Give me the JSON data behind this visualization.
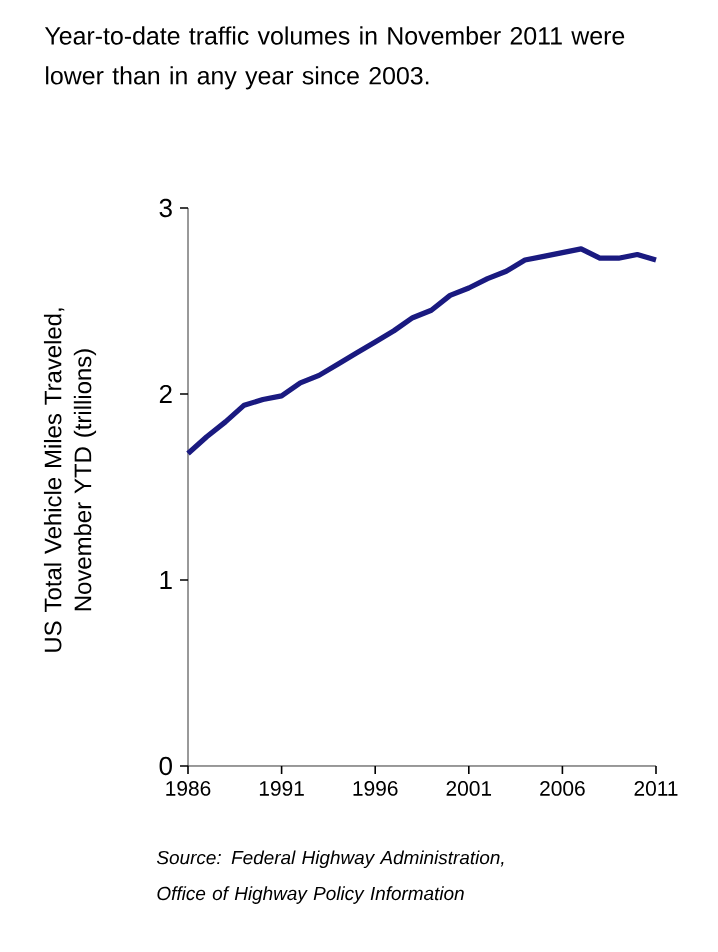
{
  "chart_data": {
    "type": "line",
    "title": "Year-to-date traffic volumes in November 2011 were lower than in any year since 2003.",
    "ylabel": "US Total Vehicle Miles Traveled, November YTD (trillions)",
    "annotations": [
      "*Source: Federal Highway Administration, Office of Highway Policy Information*"
    ],
    "x": [
      1986,
      1987,
      1988,
      1989,
      1990,
      1991,
      1992,
      1993,
      1994,
      1995,
      1996,
      1997,
      1998,
      1999,
      2000,
      2001,
      2002,
      2003,
      2004,
      2005,
      2006,
      2007,
      2008,
      2009,
      2010,
      2011
    ],
    "series": [
      {
        "color": "#1a1a80",
        "values": [
          1.68,
          1.77,
          1.85,
          1.94,
          1.97,
          1.99,
          2.06,
          2.1,
          2.16,
          2.22,
          2.28,
          2.34,
          2.41,
          2.45,
          2.53,
          2.57,
          2.62,
          2.66,
          2.72,
          2.74,
          2.76,
          2.78,
          2.73,
          2.73,
          2.75,
          2.72
        ]
      }
    ],
    "xlim": [
      1986,
      2011
    ],
    "xticks": [
      1986,
      1991,
      1996,
      2001,
      2006,
      2011
    ],
    "ylim": [
      0,
      3
    ],
    "yticks": [
      0,
      1,
      2,
      3
    ],
    "grid": false,
    "marker": "none",
    "line_style": "solid"
  }
}
